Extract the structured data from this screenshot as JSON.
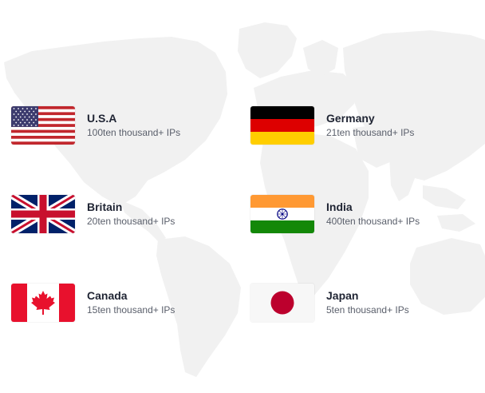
{
  "locations": [
    {
      "id": "usa",
      "name": "U.S.A",
      "count": "100ten thousand+ IPs",
      "flag": "usa-flag-icon"
    },
    {
      "id": "germany",
      "name": "Germany",
      "count": "21ten thousand+ IPs",
      "flag": "germany-flag-icon"
    },
    {
      "id": "britain",
      "name": "Britain",
      "count": "20ten thousand+ IPs",
      "flag": "uk-flag-icon"
    },
    {
      "id": "india",
      "name": "India",
      "count": "400ten thousand+ IPs",
      "flag": "india-flag-icon"
    },
    {
      "id": "canada",
      "name": "Canada",
      "count": "15ten thousand+ IPs",
      "flag": "canada-flag-icon"
    },
    {
      "id": "japan",
      "name": "Japan",
      "count": "5ten thousand+ IPs",
      "flag": "japan-flag-icon"
    }
  ],
  "colors": {
    "map": "#f1f1f1",
    "title_text": "#1f2433",
    "sub_text": "#5a5f6b"
  }
}
